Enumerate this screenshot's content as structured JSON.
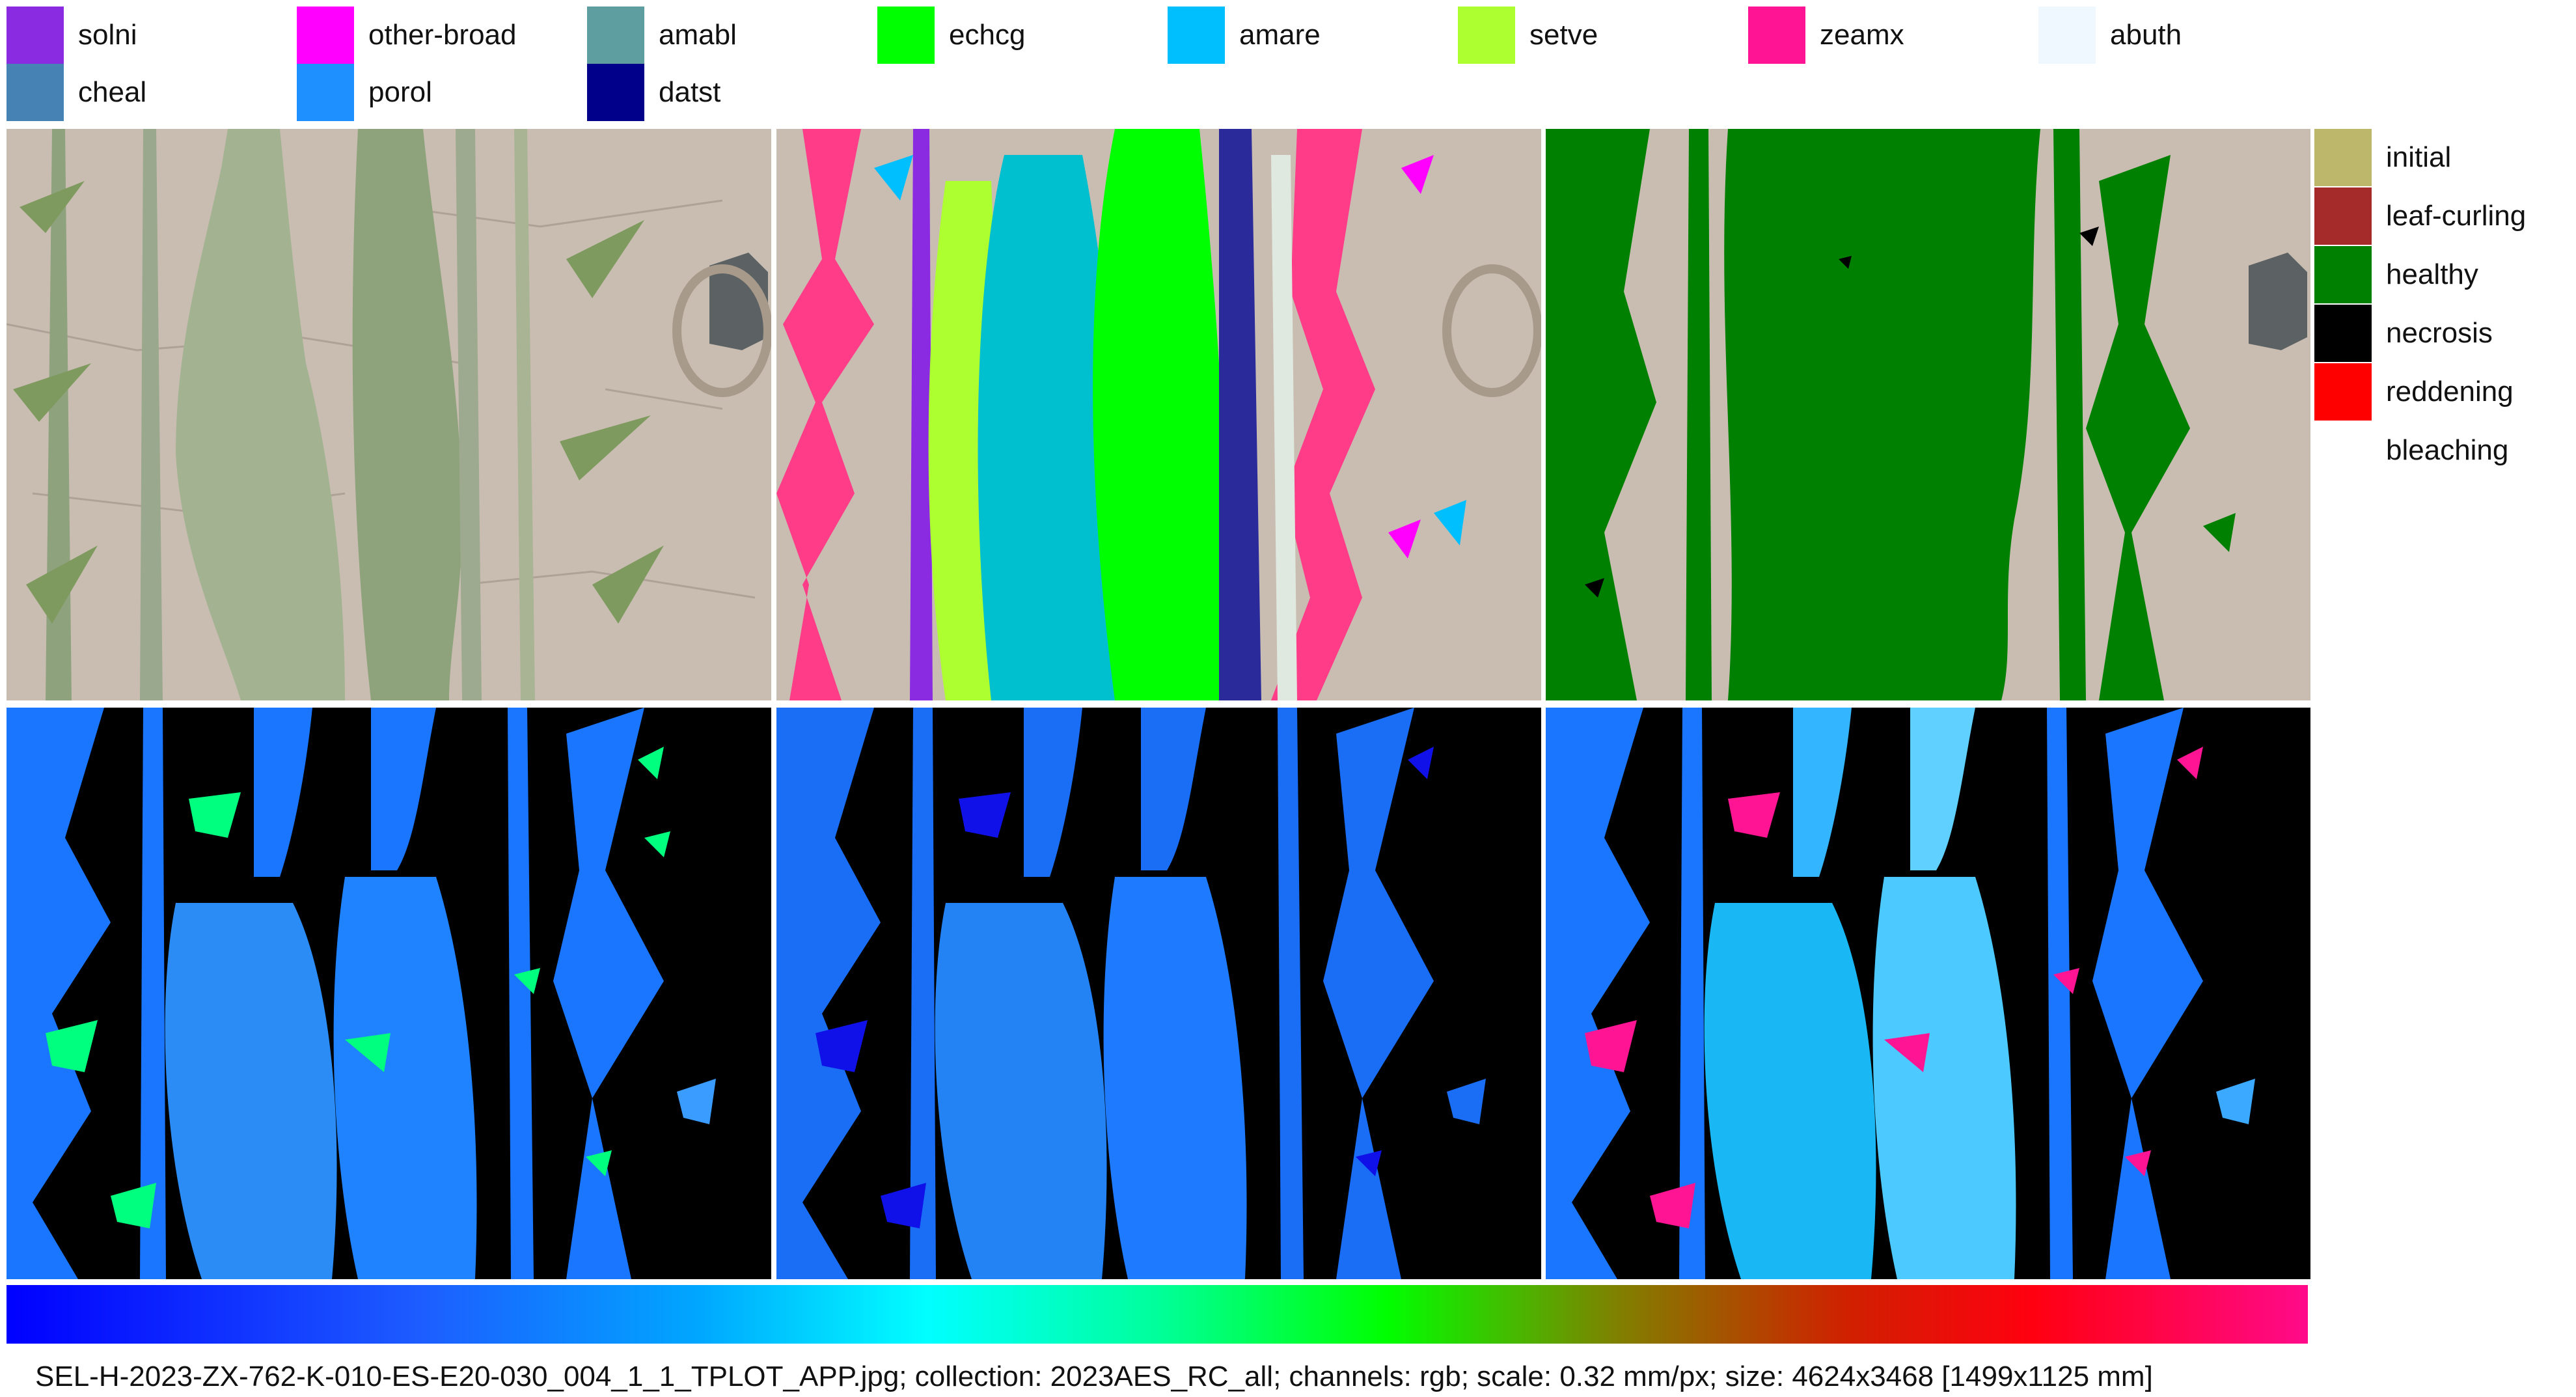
{
  "species_legend": [
    {
      "label": "solni",
      "color": "#8a2be2"
    },
    {
      "label": "other-broad",
      "color": "#ff00ff"
    },
    {
      "label": "amabl",
      "color": "#5f9ea0"
    },
    {
      "label": "echcg",
      "color": "#00ff00"
    },
    {
      "label": "amare",
      "color": "#00bfff"
    },
    {
      "label": "setve",
      "color": "#adff2f"
    },
    {
      "label": "zeamx",
      "color": "#ff1493"
    },
    {
      "label": "abuth",
      "color": "#f0f8ff"
    },
    {
      "label": "cheal",
      "color": "#4682b4"
    },
    {
      "label": "porol",
      "color": "#1e90ff"
    },
    {
      "label": "datst",
      "color": "#00008b"
    }
  ],
  "condition_legend": [
    {
      "label": "initial",
      "color": "#bdb76b"
    },
    {
      "label": "leaf-curling",
      "color": "#a52a2a"
    },
    {
      "label": "healthy",
      "color": "#008000"
    },
    {
      "label": "necrosis",
      "color": "#000000"
    },
    {
      "label": "reddening",
      "color": "#ff0000"
    },
    {
      "label": "bleaching",
      "color": "#ffffff"
    }
  ],
  "panels": [
    {
      "name": "rgb-photo-panel"
    },
    {
      "name": "species-segmentation-panel"
    },
    {
      "name": "condition-segmentation-panel"
    },
    {
      "name": "instance-map-panel-1"
    },
    {
      "name": "instance-map-panel-2"
    },
    {
      "name": "instance-map-panel-3"
    }
  ],
  "colors": {
    "soil": "#c9bdb2",
    "healthy": "#008000",
    "mask_bg": "#000000",
    "instance_blue": "#1a75ff"
  },
  "caption": "SEL-H-2023-ZX-762-K-010-ES-E20-030_004_1_1_TPLOT_APP.jpg; collection: 2023AES_RC_all; channels: rgb; scale: 0.32 mm/px; size: 4624x3468 [1499x1125 mm]"
}
